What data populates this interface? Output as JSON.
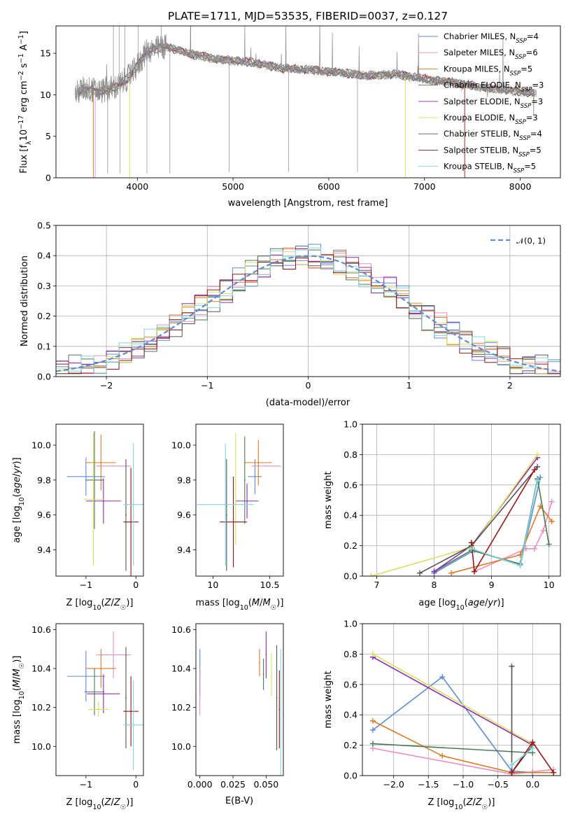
{
  "figure": {
    "title": "PLATE=1711, MJD=53535, FIBERID=0037, z=0.127"
  },
  "colors": {
    "Chabrier MILES": "#5b8bd9",
    "Salpeter MILES": "#ee8cc4",
    "Kroupa MILES": "#e07a1f",
    "Chabrier ELODIE": "#4a7a52",
    "Salpeter ELODIE": "#8f2bb0",
    "Kroupa ELODIE": "#d8e05a",
    "Chabrier STELIB": "#555555",
    "Salpeter STELIB": "#a01414",
    "Kroupa STELIB": "#7fd6dc",
    "gauss": "#5b8bd9",
    "data": "#888888"
  },
  "chart_data": [
    {
      "type": "line",
      "id": "spectrum",
      "title": "PLATE=1711, MJD=53535, FIBERID=0037, z=0.127",
      "xlabel": "wavelength [Angstrom, rest frame]",
      "ylabel": "Flux [fλ10⁻¹⁷ erg cm⁻² s⁻¹ A⁻¹]",
      "xlim": [
        3150,
        8420
      ],
      "ylim": [
        0,
        18.3
      ],
      "xticks": [
        "4000",
        "5000",
        "6000",
        "7000",
        "8000"
      ],
      "yticks": [
        "0",
        "5",
        "10",
        "15"
      ],
      "legend_position": "right",
      "data_profile": {
        "x": [
          3350,
          3450,
          3600,
          3800,
          3950,
          4100,
          4300,
          4600,
          4900,
          5200,
          5500,
          5800,
          6100,
          6400,
          6700,
          7000,
          7300,
          7600,
          7900,
          8150
        ],
        "y": [
          10.1,
          10.8,
          10.4,
          11.0,
          12.6,
          15.3,
          15.8,
          14.8,
          14.2,
          13.9,
          13.2,
          13.0,
          12.7,
          12.3,
          12.5,
          11.9,
          11.5,
          10.9,
          10.5,
          10.2
        ]
      },
      "series": [
        {
          "name": "Chabrier MILES, N_SSP=4",
          "label_main": "Chabrier MILES, N",
          "label_sub": "SSP",
          "label_tail": "=4"
        },
        {
          "name": "Salpeter MILES, N_SSP=6",
          "label_main": "Salpeter MILES, N",
          "label_sub": "SSP",
          "label_tail": "=6"
        },
        {
          "name": "Kroupa MILES, N_SSP=5",
          "label_main": "Kroupa MILES, N",
          "label_sub": "SSP",
          "label_tail": "=5"
        },
        {
          "name": "Chabrier ELODIE, N_SSP=3",
          "label_main": "Chabrier ELODIE, N",
          "label_sub": "SSP",
          "label_tail": "=3"
        },
        {
          "name": "Salpeter ELODIE, N_SSP=3",
          "label_main": "Salpeter ELODIE, N",
          "label_sub": "SSP",
          "label_tail": "=3"
        },
        {
          "name": "Kroupa ELODIE, N_SSP=3",
          "label_main": "Kroupa ELODIE, N",
          "label_sub": "SSP",
          "label_tail": "=3"
        },
        {
          "name": "Chabrier STELIB, N_SSP=4",
          "label_main": "Chabrier STELIB, N",
          "label_sub": "SSP",
          "label_tail": "=4"
        },
        {
          "name": "Salpeter STELIB, N_SSP=5",
          "label_main": "Salpeter STELIB, N",
          "label_sub": "SSP",
          "label_tail": "=5"
        },
        {
          "name": "Kroupa STELIB, N_SSP=5",
          "label_main": "Kroupa STELIB, N",
          "label_sub": "SSP",
          "label_tail": "=5"
        }
      ]
    },
    {
      "type": "line",
      "id": "residuals",
      "xlabel": "(data-model)/error",
      "ylabel": "Normed distribution",
      "xlim": [
        -2.5,
        2.5
      ],
      "ylim": [
        0,
        0.5
      ],
      "xticks": [
        "−2",
        "−1",
        "0",
        "1",
        "2"
      ],
      "yticks": [
        "0.0",
        "0.1",
        "0.2",
        "0.3",
        "0.4",
        "0.5"
      ],
      "grid": true,
      "legend_position": "top-right",
      "gauss_label": "𝒩(0, 1)",
      "gauss": {
        "mean": 0,
        "sigma": 1
      }
    },
    {
      "type": "scatter",
      "id": "age-vs-Z",
      "xlabel": "Z [log10(Z/Z☉)]",
      "ylabel": "age  [log10(age/yr)]",
      "xlim": [
        -1.6,
        0.15
      ],
      "ylim": [
        9.25,
        10.12
      ],
      "xticks": [
        "−1",
        "0"
      ],
      "yticks": [
        "9.4",
        "9.6",
        "9.8",
        "10.0"
      ],
      "points": [
        {
          "x": -1.0,
          "xerr": 0.38,
          "y": 9.82,
          "yerr": 0.11
        },
        {
          "x": -0.45,
          "xerr": 0.35,
          "y": 9.88,
          "yerr": 0.0
        },
        {
          "x": -0.7,
          "xerr": 0.3,
          "y": 9.9,
          "yerr": 0.16
        },
        {
          "x": -0.83,
          "xerr": 0.18,
          "y": 9.8,
          "yerr": 0.28
        },
        {
          "x": -0.65,
          "xerr": 0.35,
          "y": 9.68,
          "yerr": 0.13
        },
        {
          "x": -0.85,
          "xerr": 0.2,
          "y": 9.69,
          "yerr": 0.38
        },
        {
          "x": -0.2,
          "xerr": 0.0,
          "y": 9.6,
          "yerr": 0.32
        },
        {
          "x": -0.1,
          "xerr": 0.15,
          "y": 9.56,
          "yerr": 0.31
        },
        {
          "x": -0.05,
          "xerr": 0.2,
          "y": 9.66,
          "yerr": 0.35
        }
      ]
    },
    {
      "type": "scatter",
      "id": "age-vs-mass",
      "xlabel": "mass [log10(M/M☉)]",
      "ylabel": "",
      "xlim": [
        9.85,
        10.62
      ],
      "ylim": [
        9.25,
        10.12
      ],
      "xticks": [
        "10",
        "10.5"
      ],
      "yticks": [
        "9.4",
        "9.6",
        "9.8",
        "10.0"
      ],
      "points": [
        {
          "x": 10.37,
          "xerr": 0.06,
          "y": 9.82,
          "yerr": 0.1
        },
        {
          "x": 10.47,
          "xerr": 0.13,
          "y": 9.88,
          "yerr": 0.0
        },
        {
          "x": 10.4,
          "xerr": 0.12,
          "y": 9.9,
          "yerr": 0.13
        },
        {
          "x": 10.28,
          "xerr": 0.0,
          "y": 9.8,
          "yerr": 0.25
        },
        {
          "x": 10.3,
          "xerr": 0.1,
          "y": 9.68,
          "yerr": 0.1
        },
        {
          "x": 10.2,
          "xerr": 0.0,
          "y": 9.75,
          "yerr": 0.32
        },
        {
          "x": 10.12,
          "xerr": 0.0,
          "y": 9.6,
          "yerr": 0.32
        },
        {
          "x": 10.18,
          "xerr": 0.12,
          "y": 9.56,
          "yerr": 0.26
        },
        {
          "x": 10.11,
          "xerr": 0.25,
          "y": 9.66,
          "yerr": 0.35
        }
      ]
    },
    {
      "type": "line",
      "id": "mass-weight-vs-age",
      "xlabel": "age  [log10(age/yr)]",
      "ylabel": "mass weight",
      "xlim": [
        6.75,
        10.2
      ],
      "ylim": [
        0,
        1.0
      ],
      "xticks": [
        "7",
        "8",
        "9",
        "10"
      ],
      "yticks": [
        "0.0",
        "0.2",
        "0.4",
        "0.6",
        "0.8",
        "1.0"
      ],
      "grid": true,
      "series": [
        {
          "name": "Chabrier MILES",
          "points": [
            [
              8.0,
              0.02
            ],
            [
              8.7,
              0.17
            ],
            [
              9.5,
              0.07
            ],
            [
              9.85,
              0.65
            ]
          ]
        },
        {
          "name": "Salpeter MILES",
          "points": [
            [
              8.7,
              0.03
            ],
            [
              9.6,
              0.18
            ],
            [
              9.75,
              0.18
            ],
            [
              9.9,
              0.3
            ],
            [
              10.05,
              0.49
            ]
          ]
        },
        {
          "name": "Kroupa MILES",
          "points": [
            [
              8.3,
              0.02
            ],
            [
              9.5,
              0.14
            ],
            [
              9.85,
              0.46
            ],
            [
              10.05,
              0.36
            ]
          ]
        },
        {
          "name": "Chabrier ELODIE",
          "points": [
            [
              8.0,
              0.03
            ],
            [
              8.65,
              0.17
            ],
            [
              9.5,
              0.08
            ],
            [
              9.8,
              0.64
            ],
            [
              10.0,
              0.21
            ]
          ]
        },
        {
          "name": "Salpeter ELODIE",
          "points": [
            [
              8.0,
              0.03
            ],
            [
              8.65,
              0.2
            ],
            [
              9.8,
              0.78
            ]
          ]
        },
        {
          "name": "Kroupa ELODIE",
          "points": [
            [
              6.9,
              0.0
            ],
            [
              8.65,
              0.19
            ],
            [
              9.8,
              0.8
            ]
          ]
        },
        {
          "name": "Chabrier STELIB",
          "points": [
            [
              7.75,
              0.02
            ],
            [
              8.65,
              0.2
            ],
            [
              9.8,
              0.72
            ]
          ]
        },
        {
          "name": "Salpeter STELIB",
          "points": [
            [
              8.65,
              0.22
            ],
            [
              8.7,
              0.03
            ],
            [
              9.75,
              0.7
            ]
          ]
        },
        {
          "name": "Kroupa STELIB",
          "points": [
            [
              8.65,
              0.18
            ],
            [
              9.5,
              0.07
            ],
            [
              9.8,
              0.63
            ]
          ]
        }
      ]
    },
    {
      "type": "scatter",
      "id": "mass-vs-Z",
      "xlabel": "Z [log10(Z/Z☉)]",
      "ylabel": "mass [log10(M/M☉)]",
      "xlim": [
        -1.6,
        0.15
      ],
      "ylim": [
        9.85,
        10.63
      ],
      "xticks": [
        "−1",
        "0"
      ],
      "yticks": [
        "10.0",
        "10.2",
        "10.4",
        "10.6"
      ],
      "points": [
        {
          "x": -1.0,
          "xerr": 0.38,
          "y": 10.36,
          "yerr": 0.13
        },
        {
          "x": -0.45,
          "xerr": 0.35,
          "y": 10.47,
          "yerr": 0.12
        },
        {
          "x": -0.7,
          "xerr": 0.3,
          "y": 10.4,
          "yerr": 0.1
        },
        {
          "x": -0.83,
          "xerr": 0.2,
          "y": 10.28,
          "yerr": 0.12
        },
        {
          "x": -0.65,
          "xerr": 0.33,
          "y": 10.27,
          "yerr": 0.1
        },
        {
          "x": -0.75,
          "xerr": 0.2,
          "y": 10.19,
          "yerr": 0.04
        },
        {
          "x": -0.2,
          "xerr": 0.0,
          "y": 10.25,
          "yerr": 0.26
        },
        {
          "x": -0.1,
          "xerr": 0.15,
          "y": 10.18,
          "yerr": 0.18
        },
        {
          "x": -0.05,
          "xerr": 0.2,
          "y": 10.11,
          "yerr": 0.23
        }
      ]
    },
    {
      "type": "scatter",
      "id": "mass-vs-ebv",
      "xlabel": "E(B-V)",
      "ylabel": "",
      "xlim": [
        -0.003,
        0.063
      ],
      "ylim": [
        9.85,
        10.63
      ],
      "xticks": [
        "0.000",
        "0.025",
        "0.050"
      ],
      "yticks": [
        "10.0",
        "10.2",
        "10.4",
        "10.6"
      ],
      "points": [
        {
          "x": 0.0,
          "y": 10.38,
          "yerr": 0.12
        },
        {
          "x": 0.0,
          "y": 10.28,
          "yerr": 0.12
        },
        {
          "x": 0.045,
          "y": 10.43,
          "yerr": 0.07
        },
        {
          "x": 0.048,
          "y": 10.37,
          "yerr": 0.08
        },
        {
          "x": 0.05,
          "y": 10.47,
          "yerr": 0.12
        },
        {
          "x": 0.054,
          "y": 10.37,
          "yerr": 0.11
        },
        {
          "x": 0.058,
          "y": 10.25,
          "yerr": 0.27
        },
        {
          "x": 0.06,
          "y": 10.19,
          "yerr": 0.2
        },
        {
          "x": 0.061,
          "y": 10.14,
          "yerr": 0.36
        }
      ]
    },
    {
      "type": "line",
      "id": "mass-weight-vs-Z",
      "xlabel": "Z [log10(Z/Z☉)]",
      "ylabel": "mass weight",
      "xlim": [
        -2.45,
        0.4
      ],
      "ylim": [
        0,
        1.0
      ],
      "xticks": [
        "−2.0",
        "−1.5",
        "−1.0",
        "−0.5",
        "0.0"
      ],
      "yticks": [
        "0.0",
        "0.2",
        "0.4",
        "0.6",
        "0.8",
        "1.0"
      ],
      "grid": true,
      "series": [
        {
          "name": "Chabrier MILES",
          "points": [
            [
              -2.3,
              0.3
            ],
            [
              -1.3,
              0.65
            ],
            [
              -0.3,
              0.03
            ],
            [
              0.0,
              0.02
            ]
          ]
        },
        {
          "name": "Salpeter MILES",
          "points": [
            [
              -2.3,
              0.18
            ],
            [
              -0.3,
              0.01
            ],
            [
              0.3,
              0.04
            ]
          ]
        },
        {
          "name": "Kroupa MILES",
          "points": [
            [
              -2.3,
              0.36
            ],
            [
              -1.3,
              0.13
            ],
            [
              -0.3,
              0.02
            ],
            [
              0.3,
              0.02
            ]
          ]
        },
        {
          "name": "Chabrier ELODIE",
          "points": [
            [
              -2.3,
              0.21
            ],
            [
              0.0,
              0.15
            ]
          ]
        },
        {
          "name": "Salpeter ELODIE",
          "points": [
            [
              -2.3,
              0.78
            ],
            [
              0.0,
              0.2
            ]
          ]
        },
        {
          "name": "Kroupa ELODIE",
          "points": [
            [
              -2.3,
              0.8
            ],
            [
              0.0,
              0.21
            ]
          ]
        },
        {
          "name": "Chabrier STELIB",
          "points": [
            [
              -0.3,
              0.72
            ],
            [
              -0.3,
              0.02
            ],
            [
              0.0,
              0.2
            ]
          ]
        },
        {
          "name": "Salpeter STELIB",
          "points": [
            [
              -0.3,
              0.02
            ],
            [
              0.0,
              0.22
            ],
            [
              0.3,
              0.02
            ]
          ]
        },
        {
          "name": "Kroupa STELIB",
          "points": [
            [
              -0.3,
              0.07
            ],
            [
              0.0,
              0.18
            ]
          ]
        }
      ]
    }
  ]
}
